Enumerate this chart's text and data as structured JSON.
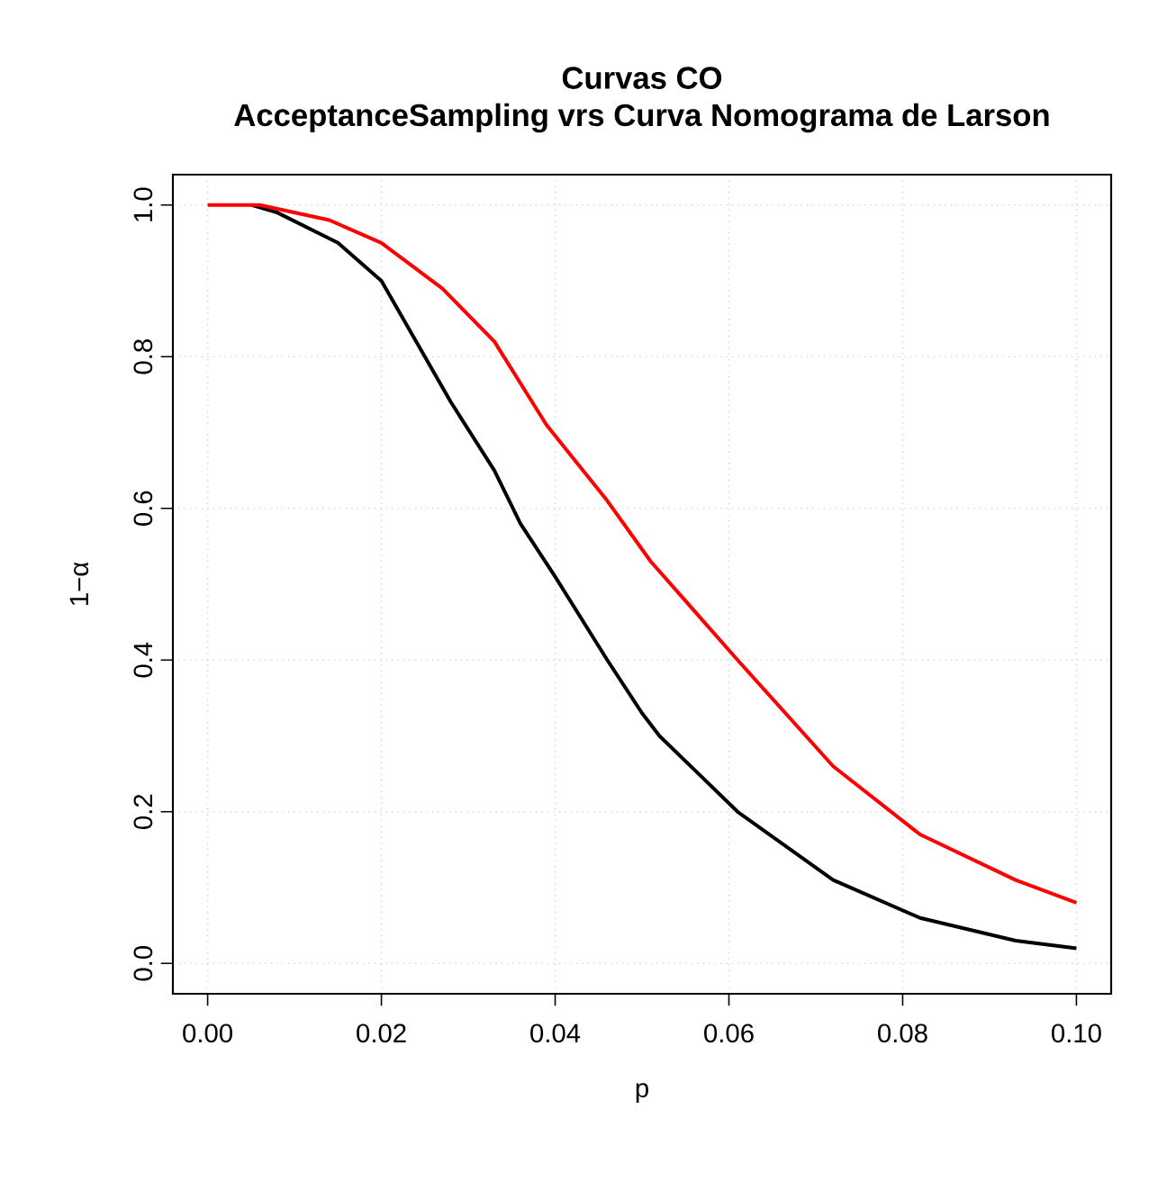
{
  "chart_data": {
    "type": "line",
    "title": "Curvas CO",
    "subtitle": "AcceptanceSampling vrs Curva Nomograma de Larson",
    "xlabel": "p",
    "ylabel": "1−α",
    "xlim": [
      -0.004,
      0.104
    ],
    "ylim": [
      -0.04,
      1.04
    ],
    "xticks": [
      {
        "value": 0,
        "label": "0.00"
      },
      0.02,
      0.04,
      0.06,
      0.08,
      {
        "value": 0.1,
        "label": "0.10"
      }
    ],
    "yticks": [
      {
        "value": 0,
        "label": "0.0"
      },
      0.2,
      0.4,
      0.6,
      0.8,
      {
        "value": 1,
        "label": "1.0"
      }
    ],
    "grid": true,
    "marker": "none",
    "line_style": "solid",
    "series": [
      {
        "color": "#000000",
        "x": [
          0.005,
          0.008,
          0.015,
          0.02,
          0.024,
          0.028,
          0.033,
          0.036,
          0.04,
          0.046,
          0.05,
          0.052,
          0.061,
          0.072,
          0.082,
          0.093,
          0.1
        ],
        "values": [
          1.0,
          0.99,
          0.95,
          0.9,
          0.82,
          0.74,
          0.65,
          0.58,
          0.51,
          0.4,
          0.33,
          0.3,
          0.2,
          0.11,
          0.06,
          0.03,
          0.02
        ]
      },
      {
        "color": "#ff0000",
        "x": [
          0,
          0.006,
          0.014,
          0.02,
          0.027,
          0.033,
          0.039,
          0.046,
          0.051,
          0.061,
          0.072,
          0.082,
          0.093,
          0.1
        ],
        "values": [
          1.0,
          1.0,
          0.98,
          0.95,
          0.89,
          0.82,
          0.71,
          0.61,
          0.53,
          0.4,
          0.26,
          0.17,
          0.11,
          0.08
        ]
      }
    ]
  }
}
